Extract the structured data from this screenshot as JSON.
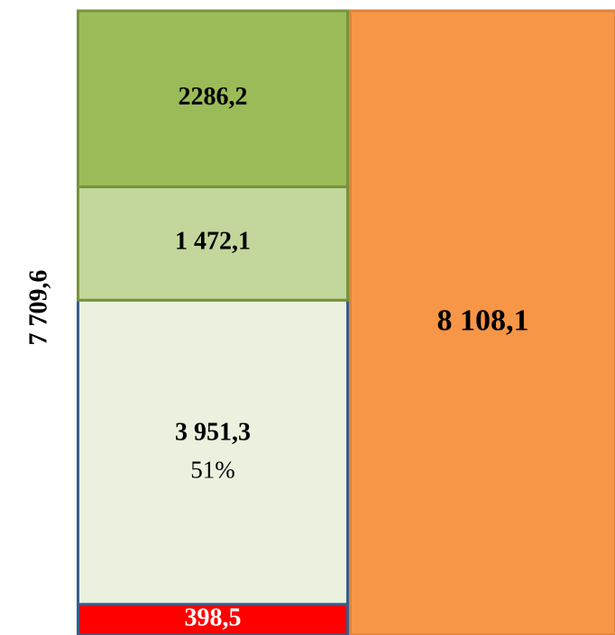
{
  "chart_data": {
    "type": "stacked-bar",
    "categories": [
      null,
      null
    ],
    "total_label": "7 709,6",
    "series": [
      {
        "color": "#ff0000",
        "border": "#385d8a",
        "text_color": "#ffffff",
        "values": [
          398.5,
          null
        ],
        "value_labels": [
          "398,5",
          null
        ]
      },
      {
        "color": "#ebf1de",
        "border": "#385d8a",
        "text_color": "#000000",
        "values": [
          3951.3,
          null
        ],
        "value_labels": [
          "3 951,3",
          null
        ],
        "share_label": "51%"
      },
      {
        "color": "#c3d69b",
        "border": "#77933c",
        "text_color": "#000000",
        "values": [
          1472.1,
          null
        ],
        "value_labels": [
          "1 472,1",
          null
        ]
      },
      {
        "color": "#9bbb59",
        "border": "#77933c",
        "text_color": "#000000",
        "values": [
          2286.2,
          null
        ],
        "value_labels": [
          "2286,2",
          null
        ]
      },
      {
        "color": "#f79646",
        "border": "#e0843a",
        "text_color": "#000000",
        "values": [
          null,
          8108.1
        ],
        "value_labels": [
          null,
          "8 108,1"
        ]
      }
    ]
  }
}
